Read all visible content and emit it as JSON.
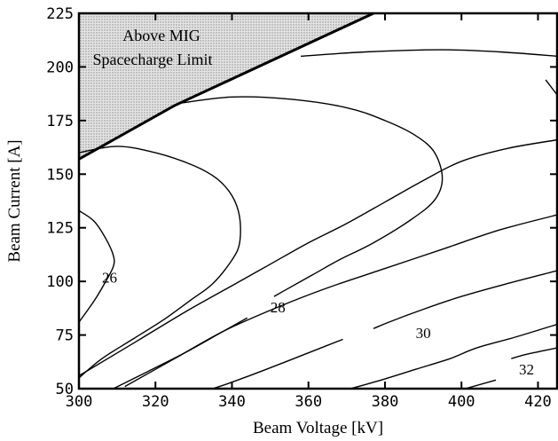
{
  "chart_data": {
    "type": "contour",
    "xlabel": "Beam Voltage [kV]",
    "ylabel": "Beam Current [A]",
    "xlim": [
      300,
      425
    ],
    "ylim": [
      50,
      225
    ],
    "xticks": [
      "300",
      "320",
      "340",
      "360",
      "380",
      "400",
      "420"
    ],
    "yticks": [
      "50",
      "75",
      "100",
      "125",
      "150",
      "175",
      "200",
      "225"
    ],
    "grid": false,
    "region": {
      "label_line1": "Above MIG",
      "label_line2": "Spacecharge Limit",
      "boundary": [
        [
          300,
          157
        ],
        [
          325,
          182
        ],
        [
          377,
          225
        ]
      ],
      "fill": "#d9d9d9"
    },
    "contours": [
      {
        "level": "26",
        "label_at": [
          308,
          102
        ],
        "points": [
          [
            300,
            133
          ],
          [
            304,
            128
          ],
          [
            307,
            120
          ],
          [
            309,
            112
          ],
          [
            309,
            107
          ],
          [
            307,
            100
          ],
          [
            304,
            91
          ],
          [
            300,
            81
          ]
        ]
      },
      {
        "level": "",
        "label_at": null,
        "points": [
          [
            300,
            160
          ],
          [
            310,
            163
          ],
          [
            320,
            160
          ],
          [
            330,
            154
          ],
          [
            336,
            148
          ],
          [
            340,
            140
          ],
          [
            342,
            130
          ],
          [
            342,
            118
          ],
          [
            340,
            110
          ],
          [
            335,
            99
          ],
          [
            329,
            91
          ],
          [
            322,
            82
          ],
          [
            314,
            73
          ],
          [
            306,
            64
          ],
          [
            300,
            55
          ]
        ]
      },
      {
        "level": "",
        "label_at": null,
        "points": [
          [
            326,
            183
          ],
          [
            340,
            186
          ],
          [
            355,
            185
          ],
          [
            370,
            181
          ],
          [
            380,
            175
          ],
          [
            388,
            168
          ],
          [
            393,
            160
          ],
          [
            395,
            148
          ],
          [
            393,
            138
          ],
          [
            387,
            129
          ],
          [
            377,
            118
          ],
          [
            368,
            110
          ],
          [
            361,
            103
          ],
          [
            354,
            96
          ],
          [
            351,
            93
          ]
        ]
      },
      {
        "level": "28",
        "label_at": [
          352,
          88
        ],
        "points": [
          [
            344,
            83
          ],
          [
            337,
            76
          ],
          [
            328,
            67
          ],
          [
            318,
            58
          ],
          [
            309,
            50
          ]
        ]
      },
      {
        "level": "",
        "label_at": null,
        "points": [
          [
            358,
            205
          ],
          [
            375,
            207
          ],
          [
            395,
            208
          ],
          [
            410,
            207
          ],
          [
            425,
            205
          ]
        ]
      },
      {
        "level": "",
        "label_at": null,
        "points": [
          [
            425,
            187
          ],
          [
            422,
            194
          ]
        ]
      },
      {
        "level": "",
        "label_at": null,
        "points": [
          [
            425,
            166
          ],
          [
            412,
            162
          ],
          [
            400,
            156
          ],
          [
            390,
            147
          ],
          [
            380,
            137
          ],
          [
            370,
            127
          ],
          [
            360,
            118
          ],
          [
            350,
            108
          ],
          [
            340,
            98
          ],
          [
            328,
            86
          ],
          [
            315,
            72
          ],
          [
            300,
            56
          ]
        ]
      },
      {
        "level": "",
        "label_at": null,
        "points": [
          [
            425,
            131
          ],
          [
            410,
            124
          ],
          [
            395,
            115
          ],
          [
            380,
            106
          ],
          [
            365,
            97
          ],
          [
            352,
            88
          ],
          [
            338,
            77
          ],
          [
            325,
            64
          ],
          [
            312,
            51
          ]
        ]
      },
      {
        "level": "",
        "label_at": null,
        "points": [
          [
            425,
            105
          ],
          [
            412,
            99
          ],
          [
            400,
            93
          ],
          [
            390,
            87
          ],
          [
            381,
            81
          ],
          [
            377,
            78
          ]
        ]
      },
      {
        "level": "30",
        "label_at": [
          390,
          76
        ],
        "points": [
          [
            369,
            73
          ],
          [
            359,
            66
          ],
          [
            349,
            59
          ],
          [
            340,
            53
          ],
          [
            335,
            50
          ]
        ]
      },
      {
        "level": "",
        "label_at": null,
        "points": [
          [
            425,
            80
          ],
          [
            414,
            74
          ],
          [
            404,
            69
          ],
          [
            397,
            64
          ],
          [
            388,
            59
          ],
          [
            379,
            54
          ],
          [
            371,
            50
          ]
        ]
      },
      {
        "level": "",
        "label_at": null,
        "points": [
          [
            425,
            69
          ],
          [
            417,
            66
          ],
          [
            413,
            64
          ]
        ]
      },
      {
        "level": "32",
        "label_at": [
          417,
          59
        ],
        "points": [
          [
            409,
            54
          ],
          [
            401,
            50
          ]
        ]
      }
    ]
  }
}
